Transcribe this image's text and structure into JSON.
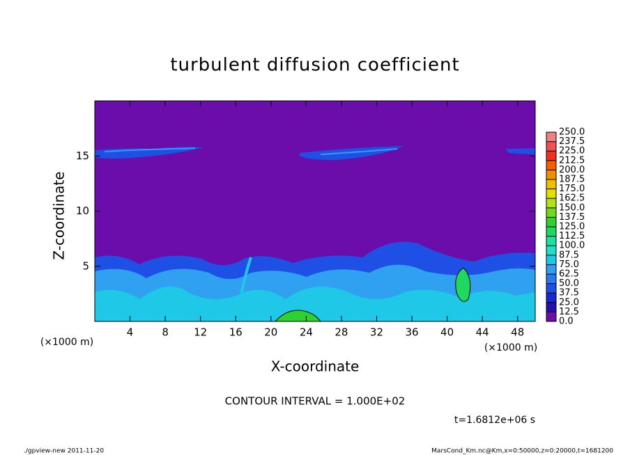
{
  "chart_data": {
    "type": "contour",
    "title": "turbulent diffusion coefficient",
    "xlabel": "X-coordinate",
    "ylabel": "Z-coordinate",
    "x_unit": "(×1000 m)",
    "xlim": [
      0,
      50
    ],
    "xticks": [
      4,
      8,
      12,
      16,
      20,
      24,
      28,
      32,
      36,
      40,
      44,
      48
    ],
    "ylim": [
      0,
      20
    ],
    "yticks": [
      5,
      10,
      15
    ],
    "annotation": "CONTOUR INTERVAL = 1.000E+02",
    "time_label": "t=1.6812e+06 s",
    "footer_left": "./gpview-new   2011-11-20",
    "footer_right": "MarsCond_Km.nc@Km,x=0:50000,z=0:20000,t=1681200",
    "colorbar": {
      "lim": [
        0,
        250
      ],
      "ticks": [
        {
          "value": 0,
          "label": "0.0"
        },
        {
          "value": 12.5,
          "label": "12.5"
        },
        {
          "value": 25,
          "label": "25.0"
        },
        {
          "value": 37.5,
          "label": "37.5"
        },
        {
          "value": 50,
          "label": "50.0"
        },
        {
          "value": 62.5,
          "label": "62.5"
        },
        {
          "value": 75,
          "label": "75.0"
        },
        {
          "value": 87.5,
          "label": "87.5"
        },
        {
          "value": 100,
          "label": "100.0"
        },
        {
          "value": 112.5,
          "label": "112.5"
        },
        {
          "value": 125,
          "label": "125.0"
        },
        {
          "value": 137.5,
          "label": "137.5"
        },
        {
          "value": 150,
          "label": "150.0"
        },
        {
          "value": 162.5,
          "label": "162.5"
        },
        {
          "value": 175,
          "label": "175.0"
        },
        {
          "value": 187.5,
          "label": "187.5"
        },
        {
          "value": 200,
          "label": "200.0"
        },
        {
          "value": 212.5,
          "label": "212.5"
        },
        {
          "value": 225,
          "label": "225.0"
        },
        {
          "value": 237.5,
          "label": "237.5"
        },
        {
          "value": 250,
          "label": "250.0"
        }
      ],
      "colors": [
        "#6a0daa",
        "#2a0fb0",
        "#1a28d0",
        "#1e50e6",
        "#2a78f0",
        "#30a0f0",
        "#20c8e8",
        "#20e0c8",
        "#20e0a0",
        "#20d860",
        "#30d030",
        "#70d820",
        "#b0e020",
        "#e0e000",
        "#f0c000",
        "#f09000",
        "#f06000",
        "#f03020",
        "#f05050",
        "#f08080"
      ]
    }
  }
}
